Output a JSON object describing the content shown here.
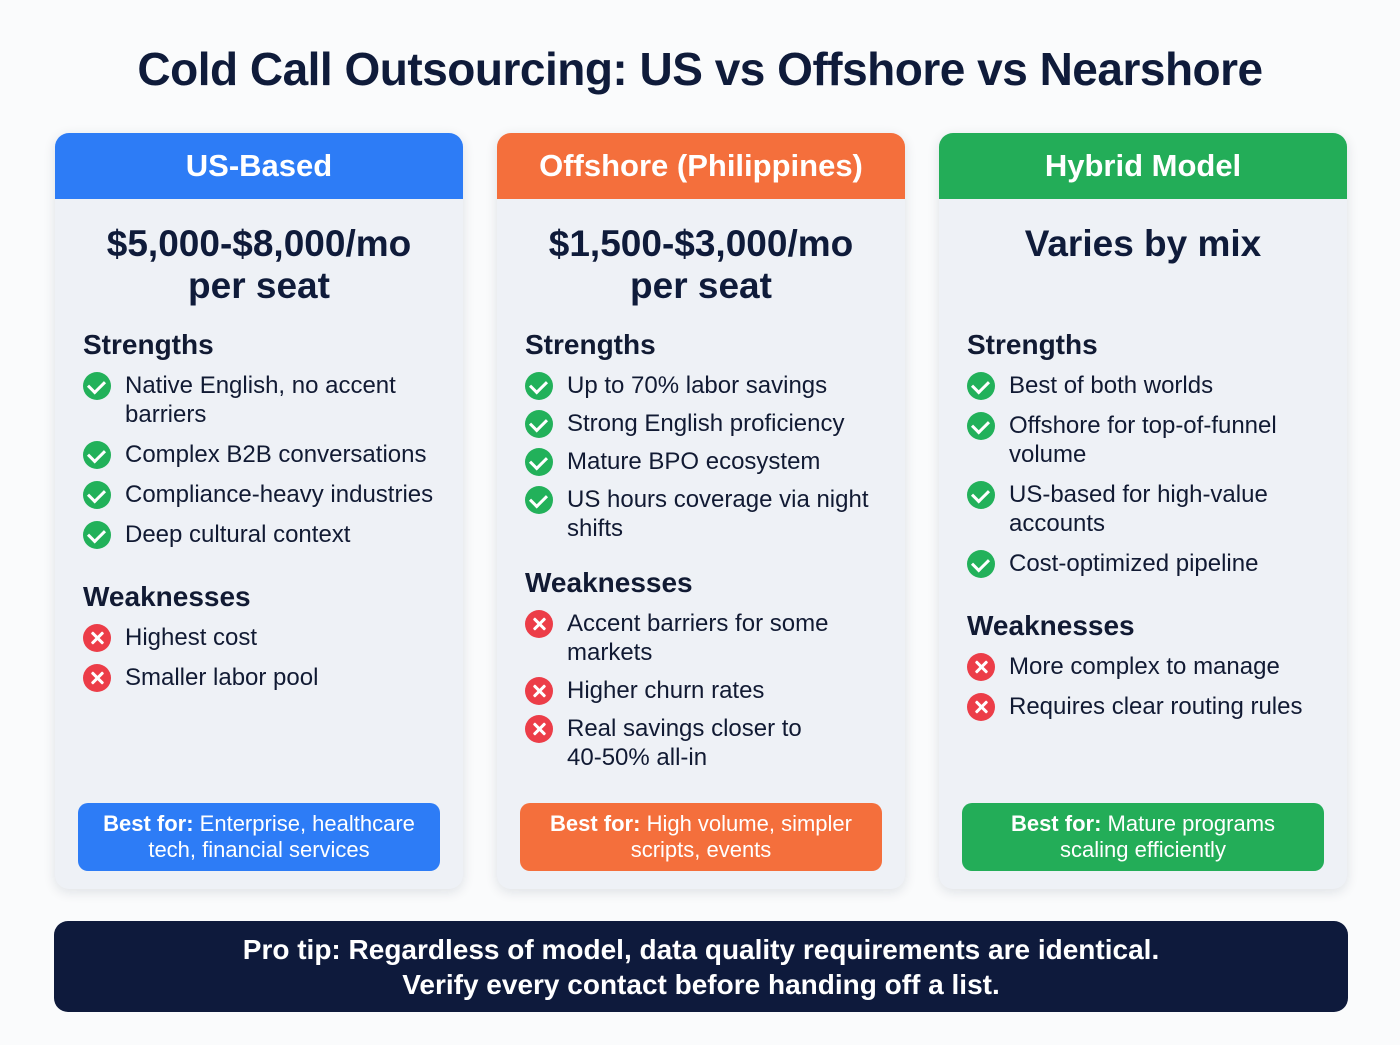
{
  "title": "Cold Call Outsourcing: US vs Offshore vs Nearshore",
  "colors": {
    "us": "#2d7cf6",
    "offshore": "#f46f3c",
    "hybrid": "#23ad58",
    "check": "#22b15a",
    "cross": "#ec3d48",
    "protip_bg": "#0e1a3c"
  },
  "cards": [
    {
      "header": "US-Based",
      "price_line1": "$5,000-$8,000/mo",
      "price_line2": "per seat",
      "strengths_title": "Strengths",
      "strengths": [
        "Native English, no accent barriers",
        "Complex B2B conversations",
        "Compliance-heavy industries",
        "Deep cultural context"
      ],
      "weaknesses_title": "Weaknesses",
      "weaknesses": [
        "Highest cost",
        "Smaller labor pool"
      ],
      "bestfor_label": "Best for:",
      "bestfor_text": "Enterprise, healthcare tech, financial services"
    },
    {
      "header": "Offshore (Philippines)",
      "price_line1": "$1,500-$3,000/mo",
      "price_line2": "per seat",
      "strengths_title": "Strengths",
      "strengths": [
        "Up to 70% labor savings",
        "Strong English proficiency",
        "Mature BPO ecosystem",
        "US hours coverage via night shifts"
      ],
      "weaknesses_title": "Weaknesses",
      "weaknesses": [
        "Accent barriers for some markets",
        "Higher churn rates",
        "Real savings closer to 40-50% all-in"
      ],
      "bestfor_label": "Best for:",
      "bestfor_text": "High volume, simpler scripts, events"
    },
    {
      "header": "Hybrid Model",
      "price_line1": "Varies by mix",
      "price_line2": "",
      "strengths_title": "Strengths",
      "strengths": [
        "Best of both worlds",
        "Offshore for top-of-funnel volume",
        "US-based for high-value accounts",
        "Cost-optimized pipeline"
      ],
      "weaknesses_title": "Weaknesses",
      "weaknesses": [
        "More complex to manage",
        "Requires clear routing rules"
      ],
      "bestfor_label": "Best for:",
      "bestfor_text": "Mature programs scaling efficiently"
    }
  ],
  "protip": {
    "line1": "Pro tip: Regardless of model, data quality requirements are identical.",
    "line2": "Verify every contact before handing off a list."
  }
}
